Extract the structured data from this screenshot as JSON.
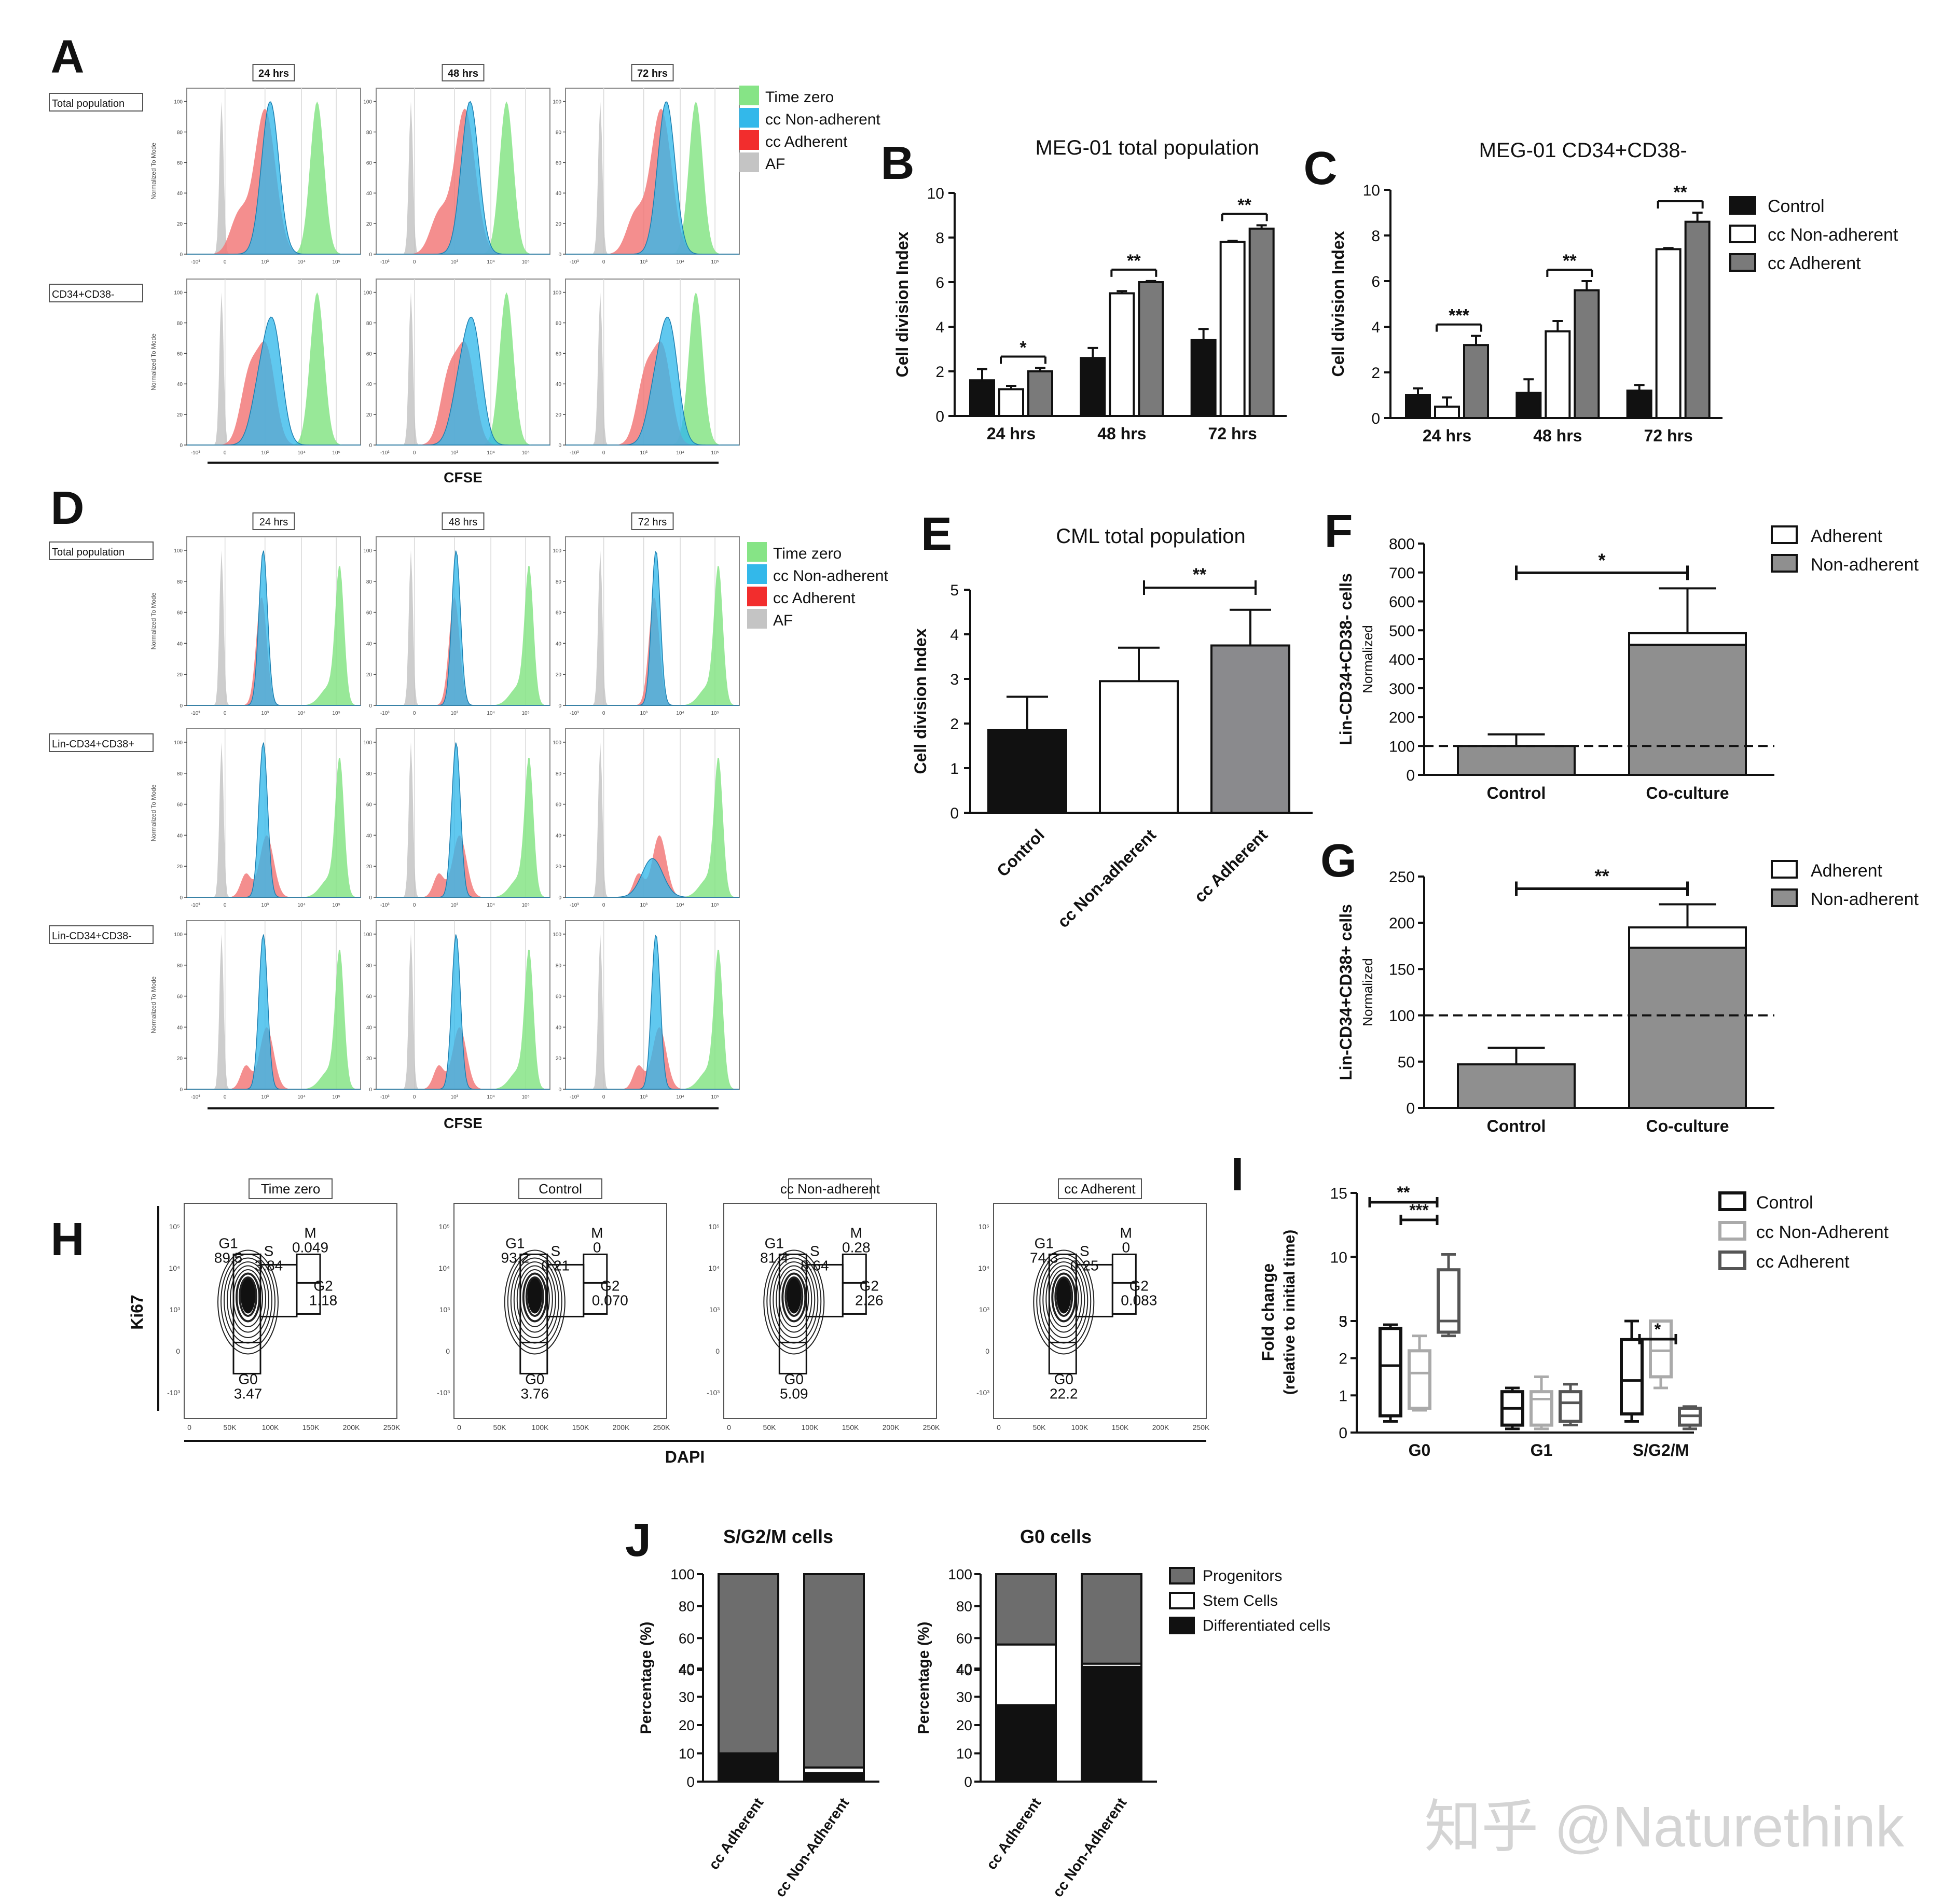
{
  "panel_letters": [
    "A",
    "B",
    "C",
    "D",
    "E",
    "F",
    "G",
    "H",
    "I",
    "J"
  ],
  "watermark": "知乎 @Naturethink",
  "chart_data": [
    {
      "panel": "A",
      "type": "histogram-grid",
      "columns": [
        "24 hrs",
        "48 hrs",
        "72 hrs"
      ],
      "rows": [
        "Total population",
        "CD34+CD38-"
      ],
      "ylabel": "Normalized To Mode",
      "xlabel": "CFSE",
      "legend": [
        "Time zero",
        "cc Non-adherent",
        "cc Adherent",
        "AF"
      ],
      "colors": {
        "Time zero": "#7fe07f",
        "cc Non-adherent": "#2fb6e8",
        "cc Adherent": "#f07070",
        "AF": "#bdbdbd"
      }
    },
    {
      "panel": "B",
      "type": "bar",
      "title": "MEG-01 total population",
      "ylabel": "Cell division Index",
      "categories": [
        "24 hrs",
        "48 hrs",
        "72 hrs"
      ],
      "ylim": [
        0,
        10
      ],
      "yticks": [
        0,
        2,
        4,
        6,
        8,
        10
      ],
      "series": [
        {
          "name": "Control",
          "values": [
            1.6,
            2.6,
            3.4
          ],
          "err": [
            0.5,
            0.45,
            0.5
          ]
        },
        {
          "name": "cc Non-adherent",
          "values": [
            1.2,
            5.5,
            7.8
          ],
          "err": [
            0.15,
            0.1,
            0.05
          ]
        },
        {
          "name": "cc Adherent",
          "values": [
            2.0,
            6.0,
            8.4
          ],
          "err": [
            0.15,
            0.05,
            0.15
          ]
        }
      ],
      "significance": [
        "*",
        "**",
        "**"
      ]
    },
    {
      "panel": "C",
      "type": "bar",
      "title": "MEG-01 CD34+CD38-",
      "ylabel": "Cell division Index",
      "categories": [
        "24 hrs",
        "48 hrs",
        "72 hrs"
      ],
      "ylim": [
        0,
        10
      ],
      "yticks": [
        0,
        2,
        4,
        6,
        8,
        10
      ],
      "series": [
        {
          "name": "Control",
          "values": [
            1.0,
            1.1,
            1.2
          ],
          "err": [
            0.3,
            0.6,
            0.25
          ]
        },
        {
          "name": "cc Non-adherent",
          "values": [
            0.5,
            3.8,
            7.4
          ],
          "err": [
            0.4,
            0.45,
            0.05
          ]
        },
        {
          "name": "cc Adherent",
          "values": [
            3.2,
            5.6,
            8.6
          ],
          "err": [
            0.4,
            0.4,
            0.4
          ]
        }
      ],
      "significance": [
        "***",
        "**",
        "**"
      ],
      "legend": [
        "Control",
        "cc Non-adherent",
        "cc Adherent"
      ]
    },
    {
      "panel": "D",
      "type": "histogram-grid",
      "columns": [
        "24 hrs",
        "48 hrs",
        "72 hrs"
      ],
      "rows": [
        "Total population",
        "Lin-CD34+CD38+",
        "Lin-CD34+CD38-"
      ],
      "ylabel": "Normalized To Mode",
      "xlabel": "CFSE",
      "legend": [
        "Time zero",
        "cc Non-adherent",
        "cc Adherent",
        "AF"
      ]
    },
    {
      "panel": "E",
      "type": "bar",
      "title": "CML total population",
      "ylabel": "Cell division Index",
      "categories": [
        "Control",
        "cc Non-adherent",
        "cc Adherent"
      ],
      "values": [
        1.85,
        2.95,
        3.75
      ],
      "err": [
        0.75,
        0.75,
        0.8
      ],
      "ylim": [
        0,
        5
      ],
      "yticks": [
        0,
        1,
        2,
        3,
        4,
        5
      ],
      "significance": "**"
    },
    {
      "panel": "F",
      "type": "stacked-bar",
      "ylabel": "Lin-CD34+CD38- cells",
      "ylabel2": "Normalized",
      "categories": [
        "Control",
        "Co-culture"
      ],
      "series": [
        {
          "name": "Non-adherent",
          "values": [
            100,
            450
          ]
        },
        {
          "name": "Adherent",
          "values": [
            0,
            40
          ]
        }
      ],
      "err": [
        40,
        155
      ],
      "ylim": [
        0,
        800
      ],
      "yticks": [
        0,
        100,
        200,
        300,
        400,
        500,
        600,
        700,
        800
      ],
      "reference_line": 100,
      "significance": "*",
      "legend": [
        "Adherent",
        "Non-adherent"
      ]
    },
    {
      "panel": "G",
      "type": "stacked-bar",
      "ylabel": "Lin-CD34+CD38+ cells",
      "ylabel2": "Normalized",
      "categories": [
        "Control",
        "Co-culture"
      ],
      "series": [
        {
          "name": "Non-adherent",
          "values": [
            47,
            173
          ]
        },
        {
          "name": "Adherent",
          "values": [
            0,
            22
          ]
        }
      ],
      "err": [
        18,
        25
      ],
      "ylim": [
        0,
        250
      ],
      "yticks": [
        0,
        50,
        100,
        150,
        200,
        250
      ],
      "reference_line": 100,
      "significance": "**",
      "legend": [
        "Adherent",
        "Non-adherent"
      ]
    },
    {
      "panel": "H",
      "type": "flow-contour",
      "xlabel": "DAPI",
      "ylabel": "Ki67",
      "xticks": [
        "0",
        "50K",
        "100K",
        "150K",
        "200K",
        "250K"
      ],
      "plots": [
        {
          "title": "Time zero",
          "G1": "89.5",
          "S": "3.84",
          "M": "0.049",
          "G2": "1.18",
          "G0": "3.47"
        },
        {
          "title": "Control",
          "G1": "93.2",
          "S": "0.21",
          "M": "0",
          "G2": "0.070",
          "G0": "3.76"
        },
        {
          "title": "cc Non-adherent",
          "G1": "81.4",
          "S": "8.64",
          "M": "0.28",
          "G2": "2.26",
          "G0": "5.09"
        },
        {
          "title": "cc Adherent",
          "G1": "74.3",
          "S": "0.25",
          "M": "0",
          "G2": "0.083",
          "G0": "22.2"
        }
      ]
    },
    {
      "panel": "I",
      "type": "boxplot",
      "ylabel": "Fold change",
      "ylabel2": "(relative to initial time)",
      "categories": [
        "G0",
        "G1",
        "S/G2/M"
      ],
      "series": [
        {
          "name": "Control",
          "boxes": [
            [
              0.3,
              0.45,
              1.8,
              2.8,
              2.9
            ],
            [
              0.1,
              0.2,
              0.65,
              1.1,
              1.2
            ],
            [
              0.3,
              0.5,
              1.4,
              2.5,
              3.0
            ]
          ]
        },
        {
          "name": "cc Non-Adherent",
          "boxes": [
            [
              0.6,
              0.65,
              1.6,
              2.2,
              2.6
            ],
            [
              0.1,
              0.2,
              0.9,
              1.1,
              1.5
            ],
            [
              1.2,
              1.5,
              2.2,
              3.8,
              4.0
            ]
          ]
        },
        {
          "name": "cc Adherent",
          "boxes": [
            [
              2.6,
              2.7,
              4.5,
              9.0,
              10.2
            ],
            [
              0.2,
              0.3,
              0.8,
              1.1,
              1.3
            ],
            [
              0.1,
              0.2,
              0.45,
              0.65,
              0.7
            ]
          ]
        }
      ],
      "yticks_low": [
        0,
        1,
        2,
        3
      ],
      "yticks_high": [
        5,
        10,
        15
      ],
      "significance": [
        "**",
        "***",
        "*"
      ],
      "legend": [
        "Control",
        "cc Non-Adherent",
        "cc Adherent"
      ]
    },
    {
      "panel": "J",
      "type": "stacked-bar",
      "plots": [
        {
          "title": "S/G2/M cells",
          "categories": [
            "cc Adherent",
            "cc Non-Adherent"
          ],
          "series": [
            {
              "name": "Differentiated cells",
              "values": [
                10,
                3
              ]
            },
            {
              "name": "Stem Cells",
              "values": [
                0,
                2
              ]
            },
            {
              "name": "Progenitors",
              "values": [
                90,
                95
              ]
            }
          ]
        },
        {
          "title": "G0 cells",
          "categories": [
            "cc Adherent",
            "cc Non-Adherent"
          ],
          "series": [
            {
              "name": "Differentiated cells",
              "values": [
                27,
                42
              ]
            },
            {
              "name": "Stem Cells",
              "values": [
                29,
                2
              ]
            },
            {
              "name": "Progenitors",
              "values": [
                44,
                56
              ]
            }
          ]
        }
      ],
      "ylabel": "Percentage (%)",
      "yticks_low": [
        0,
        10,
        20,
        30,
        40
      ],
      "yticks_high": [
        40,
        60,
        80,
        100
      ],
      "legend": [
        "Progenitors",
        "Stem Cells",
        "Differentiated cells"
      ]
    }
  ]
}
